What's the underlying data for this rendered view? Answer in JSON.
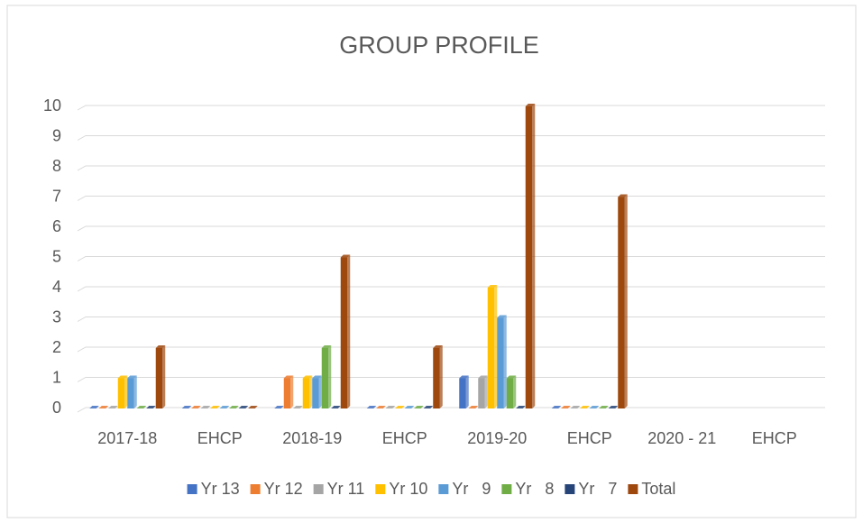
{
  "chart_data": {
    "type": "bar",
    "title": "GROUP PROFILE",
    "categories": [
      "2017-18",
      "EHCP",
      "2018-19",
      "EHCP",
      "2019-20",
      "EHCP",
      "2020 - 21",
      "EHCP"
    ],
    "series": [
      {
        "name": "Yr 13",
        "color": "#4472c4",
        "values": [
          0,
          0,
          0,
          0,
          1,
          0,
          null,
          null
        ]
      },
      {
        "name": "Yr 12",
        "color": "#ed7d31",
        "values": [
          0,
          0,
          1,
          0,
          0,
          0,
          null,
          null
        ]
      },
      {
        "name": "Yr 11",
        "color": "#a5a5a5",
        "values": [
          0,
          0,
          0,
          0,
          1,
          0,
          null,
          null
        ]
      },
      {
        "name": "Yr 10",
        "color": "#ffc000",
        "values": [
          1,
          0,
          1,
          0,
          4,
          0,
          null,
          null
        ]
      },
      {
        "name": "Yr   9",
        "color": "#5b9bd5",
        "values": [
          1,
          0,
          1,
          0,
          3,
          0,
          null,
          null
        ]
      },
      {
        "name": "Yr   8",
        "color": "#70ad47",
        "values": [
          0,
          0,
          2,
          0,
          1,
          0,
          null,
          null
        ]
      },
      {
        "name": "Yr   7",
        "color": "#264478",
        "values": [
          0,
          0,
          0,
          0,
          0,
          0,
          null,
          null
        ]
      },
      {
        "name": "Total",
        "color": "#9e480e",
        "values": [
          2,
          0,
          5,
          2,
          10,
          7,
          null,
          null
        ]
      }
    ],
    "ylim": [
      0,
      10
    ],
    "yticks": [
      0,
      1,
      2,
      3,
      4,
      5,
      6,
      7,
      8,
      9,
      10
    ],
    "grid": true,
    "legend": "bottom"
  }
}
